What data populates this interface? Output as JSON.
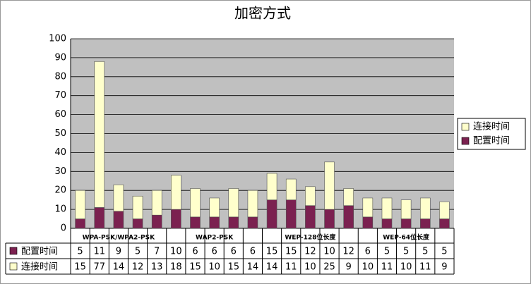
{
  "chart_data": {
    "type": "stacked_bar",
    "title": "加密方式",
    "categories": [
      null,
      null,
      "WPA-PSK/WPA2-PSK",
      null,
      null,
      null,
      null,
      "WAP2-PSK",
      null,
      null,
      null,
      null,
      "WEP-128位长度",
      null,
      null,
      null,
      null,
      "WEP-64位长度",
      null,
      null
    ],
    "series": [
      {
        "name": "配置时间",
        "color": "#7b2150",
        "values": [
          5,
          11,
          9,
          5,
          7,
          10,
          6,
          6,
          6,
          6,
          15,
          15,
          12,
          10,
          12,
          6,
          5,
          5,
          5,
          5
        ]
      },
      {
        "name": "连接时间",
        "color": "#ffffcc",
        "values": [
          15,
          77,
          14,
          12,
          13,
          18,
          15,
          10,
          15,
          14,
          14,
          11,
          10,
          25,
          9,
          10,
          11,
          10,
          11,
          9
        ]
      }
    ],
    "ylim": [
      0,
      100
    ],
    "yticks": [
      0,
      10,
      20,
      30,
      40,
      50,
      60,
      70,
      80,
      90,
      100
    ],
    "grid": true,
    "legend": "right",
    "data_table": true
  }
}
